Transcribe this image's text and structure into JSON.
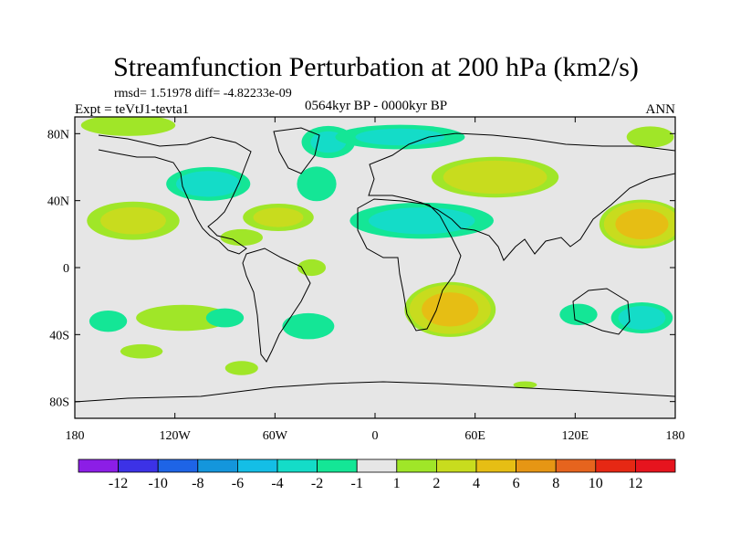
{
  "chart_data": {
    "type": "heatmap",
    "title": "Streamfunction Perturbation at 200 hPa (km2/s)",
    "stats_line": "rmsd= 1.51978 diff= -4.82233e-09",
    "experiment": "Expt = teVtJ1-tevta1",
    "period": "0564kyr BP - 0000kyr BP",
    "season": "ANN",
    "x_range": [
      -180,
      180
    ],
    "y_range": [
      -90,
      90
    ],
    "x_ticks": [
      {
        "value": -180,
        "label": "180"
      },
      {
        "value": -120,
        "label": "120W"
      },
      {
        "value": -60,
        "label": "60W"
      },
      {
        "value": 0,
        "label": "0"
      },
      {
        "value": 60,
        "label": "60E"
      },
      {
        "value": 120,
        "label": "120E"
      },
      {
        "value": 180,
        "label": "180"
      }
    ],
    "y_ticks": [
      {
        "value": 80,
        "label": "80N"
      },
      {
        "value": 40,
        "label": "40N"
      },
      {
        "value": 0,
        "label": "0"
      },
      {
        "value": -40,
        "label": "40S"
      },
      {
        "value": -80,
        "label": "80S"
      }
    ],
    "levels": [
      "-12",
      "-10",
      "-8",
      "-6",
      "-4",
      "-2",
      "-1",
      "1",
      "2",
      "4",
      "6",
      "8",
      "10",
      "12"
    ],
    "colors": [
      "#8c1ee6",
      "#3c32e6",
      "#1e64e6",
      "#1496dc",
      "#14bee6",
      "#14dcc8",
      "#14e696",
      "#e6e6e6",
      "#a0e628",
      "#c8dc1e",
      "#e6be14",
      "#e69614",
      "#e6641e",
      "#e62814",
      "#e6141e"
    ],
    "anomalies": [
      {
        "lon": -148,
        "lat": 85,
        "w": 40,
        "h": 9,
        "v": 1.6
      },
      {
        "lon": -145,
        "lat": 28,
        "w": 34,
        "h": 14,
        "v": 2.6
      },
      {
        "lon": -100,
        "lat": 50,
        "w": 30,
        "h": 12,
        "v": -3.0
      },
      {
        "lon": -58,
        "lat": 30,
        "w": 26,
        "h": 10,
        "v": 2.6
      },
      {
        "lon": -80,
        "lat": 18,
        "w": 18,
        "h": 7,
        "v": 1.6
      },
      {
        "lon": -115,
        "lat": -30,
        "w": 40,
        "h": 11,
        "v": 1.6
      },
      {
        "lon": -160,
        "lat": -32,
        "w": 16,
        "h": 9,
        "v": -1.6
      },
      {
        "lon": -90,
        "lat": -30,
        "w": 16,
        "h": 8,
        "v": -1.6
      },
      {
        "lon": -38,
        "lat": 0,
        "w": 12,
        "h": 7,
        "v": 1.6
      },
      {
        "lon": -40,
        "lat": -35,
        "w": 22,
        "h": 11,
        "v": -1.6
      },
      {
        "lon": -140,
        "lat": -50,
        "w": 18,
        "h": 6,
        "v": 1.6
      },
      {
        "lon": -80,
        "lat": -60,
        "w": 14,
        "h": 6,
        "v": 1.6
      },
      {
        "lon": -28,
        "lat": 75,
        "w": 20,
        "h": 12,
        "v": -2.4
      },
      {
        "lon": -35,
        "lat": 50,
        "w": 16,
        "h": 14,
        "v": -1.8
      },
      {
        "lon": 15,
        "lat": 78,
        "w": 48,
        "h": 9,
        "v": -2.5
      },
      {
        "lon": 28,
        "lat": 28,
        "w": 52,
        "h": 13,
        "v": -2.8
      },
      {
        "lon": 72,
        "lat": 54,
        "w": 44,
        "h": 14,
        "v": 3.6
      },
      {
        "lon": 45,
        "lat": -25,
        "w": 30,
        "h": 18,
        "v": 5.5
      },
      {
        "lon": 160,
        "lat": 26,
        "w": 28,
        "h": 16,
        "v": 5.5
      },
      {
        "lon": 165,
        "lat": 78,
        "w": 20,
        "h": 9,
        "v": 1.6
      },
      {
        "lon": 160,
        "lat": -30,
        "w": 22,
        "h": 11,
        "v": -3.0
      },
      {
        "lon": 122,
        "lat": -28,
        "w": 16,
        "h": 9,
        "v": -1.6
      },
      {
        "lon": 90,
        "lat": -70,
        "w": 10,
        "h": 3,
        "v": 1.6
      }
    ]
  }
}
